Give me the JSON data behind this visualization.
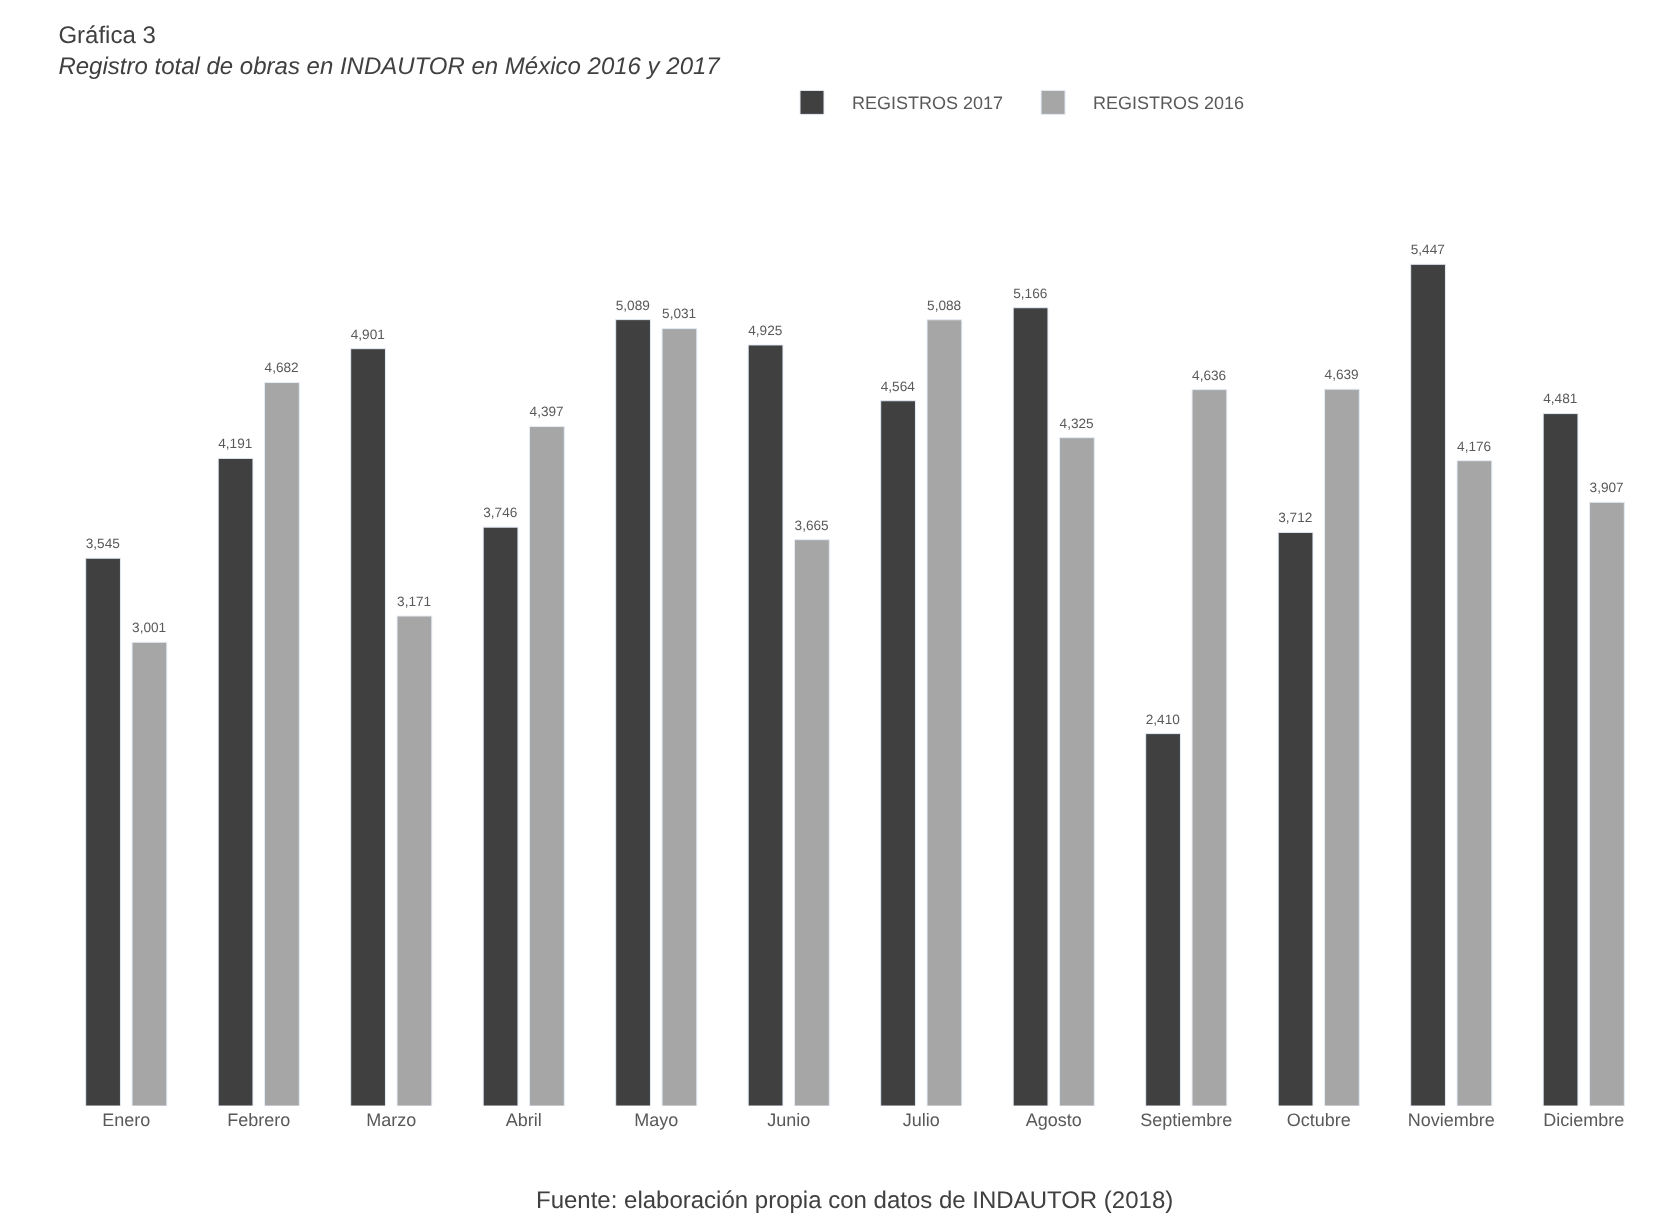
{
  "chart_data": {
    "type": "bar",
    "title": "Gráfica 3",
    "subtitle": "Registro total de obras en INDAUTOR en México 2016 y 2017",
    "categories": [
      "Enero",
      "Febrero",
      "Marzo",
      "Abril",
      "Mayo",
      "Junio",
      "Julio",
      "Agosto",
      "Septiembre",
      "Octubre",
      "Noviembre",
      "Diciembre"
    ],
    "series": [
      {
        "name": "REGISTROS 2017",
        "color": "#404040",
        "values": [
          3545,
          4191,
          4901,
          3746,
          5089,
          4925,
          4564,
          5166,
          2410,
          3712,
          5447,
          4481
        ],
        "value_labels": [
          "3,545",
          "4,191",
          "4,901",
          "3,746",
          "5,089",
          "4,925",
          "4,564",
          "5,166",
          "2,410",
          "3,712",
          "5,447",
          "4,481"
        ]
      },
      {
        "name": "REGISTROS 2016",
        "color": "#a6a6a6",
        "values": [
          3001,
          4682,
          3171,
          4397,
          5031,
          3665,
          5088,
          4325,
          4636,
          4639,
          4176,
          3907
        ],
        "value_labels": [
          "3,001",
          "4,682",
          "3,171",
          "4,397",
          "5,031",
          "3,665",
          "5,088",
          "4,325",
          "4,636",
          "4,639",
          "4,176",
          "3,907"
        ]
      }
    ],
    "tick_labels": "x",
    "legend": "top",
    "annotations": [
      "Fuente: elaboración propia con datos de INDAUTOR (2018)"
    ]
  }
}
